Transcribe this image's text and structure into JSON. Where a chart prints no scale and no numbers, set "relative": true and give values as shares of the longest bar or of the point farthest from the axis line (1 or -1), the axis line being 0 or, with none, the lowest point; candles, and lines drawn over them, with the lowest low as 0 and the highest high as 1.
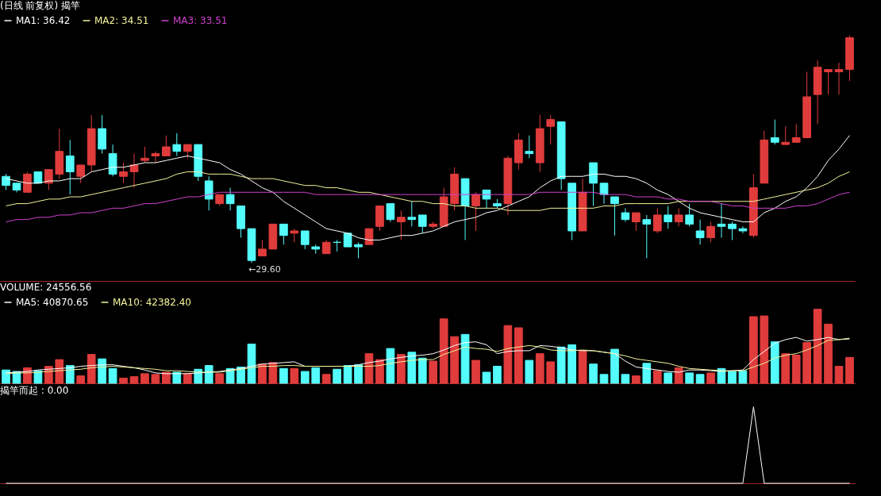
{
  "chart_data": [
    {
      "type": "candlestick",
      "title": "(日线 前复权) 揭竿",
      "relative": true,
      "legend": "top left",
      "categories": [
        null,
        null,
        null,
        null,
        null,
        null,
        null,
        null,
        null,
        null,
        null,
        null,
        null,
        null,
        null,
        null,
        null,
        null,
        null,
        null,
        null,
        null,
        null,
        null,
        null,
        null,
        null,
        null,
        null,
        null,
        null,
        null,
        null,
        null,
        null,
        null,
        null,
        null,
        null,
        null,
        null,
        null,
        null,
        null,
        null,
        null,
        null,
        null,
        null,
        null,
        null,
        null,
        null,
        null,
        null,
        null,
        null,
        null,
        null,
        null,
        null,
        null,
        null,
        null,
        null,
        null,
        null,
        null,
        null,
        null,
        null,
        null,
        null,
        null,
        null,
        null,
        null,
        null,
        null,
        null
      ],
      "ohlc": [
        [
          0.38,
          0.39,
          0.32,
          0.34
        ],
        [
          0.35,
          0.35,
          0.31,
          0.32
        ],
        [
          0.31,
          0.4,
          0.31,
          0.39
        ],
        [
          0.4,
          0.4,
          0.35,
          0.35
        ],
        [
          0.35,
          0.41,
          0.32,
          0.41
        ],
        [
          0.39,
          0.59,
          0.37,
          0.49
        ],
        [
          0.47,
          0.54,
          0.3,
          0.4
        ],
        [
          0.38,
          0.43,
          0.35,
          0.43
        ],
        [
          0.43,
          0.65,
          0.4,
          0.59
        ],
        [
          0.59,
          0.65,
          0.48,
          0.5
        ],
        [
          0.48,
          0.52,
          0.38,
          0.39
        ],
        [
          0.38,
          0.44,
          0.35,
          0.4
        ],
        [
          0.4,
          0.48,
          0.33,
          0.43
        ],
        [
          0.45,
          0.51,
          0.44,
          0.46
        ],
        [
          0.47,
          0.49,
          0.44,
          0.48
        ],
        [
          0.47,
          0.56,
          0.47,
          0.51
        ],
        [
          0.52,
          0.57,
          0.47,
          0.49
        ],
        [
          0.49,
          0.52,
          0.46,
          0.52
        ],
        [
          0.52,
          0.52,
          0.36,
          0.38
        ],
        [
          0.36,
          0.38,
          0.23,
          0.28
        ],
        [
          0.26,
          0.3,
          0.25,
          0.3
        ],
        [
          0.3,
          0.33,
          0.23,
          0.26
        ],
        [
          0.25,
          0.25,
          0.11,
          0.15
        ],
        [
          0.15,
          0.15,
          0,
          0.01
        ],
        [
          0.03,
          0.1,
          0.03,
          0.06
        ],
        [
          0.06,
          0.17,
          0.06,
          0.17
        ],
        [
          0.17,
          0.17,
          0.08,
          0.12
        ],
        [
          0.13,
          0.15,
          0.09,
          0.14
        ],
        [
          0.14,
          0.14,
          0.06,
          0.08
        ],
        [
          0.07,
          0.08,
          0.04,
          0.06
        ],
        [
          0.04,
          0.1,
          0.04,
          0.09
        ],
        [
          0.09,
          0.1,
          0.05,
          0.09
        ],
        [
          0.13,
          0.13,
          0.07,
          0.07
        ],
        [
          0.08,
          0.09,
          0.02,
          0.07
        ],
        [
          0.08,
          0.15,
          0.08,
          0.15
        ],
        [
          0.16,
          0.25,
          0.14,
          0.25
        ],
        [
          0.26,
          0.26,
          0.18,
          0.19
        ],
        [
          0.18,
          0.23,
          0.1,
          0.2
        ],
        [
          0.2,
          0.27,
          0.16,
          0.19
        ],
        [
          0.21,
          0.21,
          0.13,
          0.16
        ],
        [
          0.16,
          0.18,
          0.15,
          0.17
        ],
        [
          0.16,
          0.33,
          0.16,
          0.29
        ],
        [
          0.26,
          0.42,
          0.23,
          0.39
        ],
        [
          0.37,
          0.37,
          0.1,
          0.25
        ],
        [
          0.25,
          0.31,
          0.14,
          0.3
        ],
        [
          0.32,
          0.32,
          0.24,
          0.28
        ],
        [
          0.26,
          0.28,
          0.24,
          0.25
        ],
        [
          0.26,
          0.47,
          0.21,
          0.46
        ],
        [
          0.44,
          0.57,
          0.41,
          0.54
        ],
        [
          0.49,
          0.56,
          0.46,
          0.48
        ],
        [
          0.44,
          0.65,
          0.4,
          0.59
        ],
        [
          0.6,
          0.65,
          0.52,
          0.63
        ],
        [
          0.62,
          0.62,
          0.32,
          0.37
        ],
        [
          0.35,
          0.35,
          0.1,
          0.14
        ],
        [
          0.14,
          0.37,
          0.14,
          0.31
        ],
        [
          0.44,
          0.44,
          0.25,
          0.35
        ],
        [
          0.35,
          0.35,
          0.26,
          0.3
        ],
        [
          0.29,
          0.29,
          0.12,
          0.26
        ],
        [
          0.22,
          0.24,
          0.18,
          0.19
        ],
        [
          0.18,
          0.22,
          0.14,
          0.22
        ],
        [
          0.19,
          0.21,
          0.02,
          0.17
        ],
        [
          0.14,
          0.24,
          0.13,
          0.21
        ],
        [
          0.21,
          0.25,
          0.15,
          0.18
        ],
        [
          0.18,
          0.24,
          0.16,
          0.21
        ],
        [
          0.21,
          0.26,
          0.16,
          0.17
        ],
        [
          0.14,
          0.19,
          0.08,
          0.11
        ],
        [
          0.11,
          0.18,
          0.09,
          0.16
        ],
        [
          0.17,
          0.26,
          0.11,
          0.16
        ],
        [
          0.17,
          0.18,
          0.1,
          0.15
        ],
        [
          0.15,
          0.16,
          0.13,
          0.14
        ],
        [
          0.12,
          0.39,
          0.11,
          0.33
        ],
        [
          0.35,
          0.58,
          0.35,
          0.54
        ],
        [
          0.55,
          0.63,
          0.52,
          0.53
        ],
        [
          0.52,
          0.6,
          0.52,
          0.53
        ],
        [
          0.53,
          0.61,
          0.53,
          0.55
        ],
        [
          0.55,
          0.84,
          0.55,
          0.73
        ],
        [
          0.74,
          0.89,
          0.61,
          0.86
        ],
        [
          0.84,
          0.85,
          0.74,
          0.85
        ],
        [
          0.84,
          0.88,
          0.74,
          0.85
        ],
        [
          0.85,
          1,
          0.8,
          0.99
        ]
      ],
      "colors": [
        "#54fcfc",
        "#54fcfc",
        "#e03c3c",
        "#54fcfc",
        "#e03c3c",
        "#e03c3c",
        "#54fcfc",
        "#e03c3c",
        "#e03c3c",
        "#54fcfc",
        "#54fcfc",
        "#e03c3c",
        "#e03c3c",
        "#e03c3c",
        "#e03c3c",
        "#e03c3c",
        "#54fcfc",
        "#e03c3c",
        "#54fcfc",
        "#54fcfc",
        "#e03c3c",
        "#54fcfc",
        "#54fcfc",
        "#54fcfc",
        "#e03c3c",
        "#e03c3c",
        "#54fcfc",
        "#e03c3c",
        "#54fcfc",
        "#54fcfc",
        "#e03c3c",
        "#54fcfc",
        "#54fcfc",
        "#54fcfc",
        "#e03c3c",
        "#e03c3c",
        "#54fcfc",
        "#e03c3c",
        "#54fcfc",
        "#54fcfc",
        "#e03c3c",
        "#e03c3c",
        "#e03c3c",
        "#54fcfc",
        "#e03c3c",
        "#54fcfc",
        "#54fcfc",
        "#e03c3c",
        "#e03c3c",
        "#54fcfc",
        "#e03c3c",
        "#e03c3c",
        "#54fcfc",
        "#54fcfc",
        "#e03c3c",
        "#54fcfc",
        "#54fcfc",
        "#54fcfc",
        "#54fcfc",
        "#e03c3c",
        "#54fcfc",
        "#e03c3c",
        "#54fcfc",
        "#e03c3c",
        "#54fcfc",
        "#54fcfc",
        "#e03c3c",
        "#54fcfc",
        "#54fcfc",
        "#54fcfc",
        "#e03c3c",
        "#e03c3c",
        "#54fcfc",
        "#e03c3c",
        "#e03c3c",
        "#e03c3c",
        "#e03c3c",
        "#e03c3c",
        "#e03c3c",
        "#e03c3c"
      ],
      "annotations": [
        "←29.60"
      ],
      "series": [
        {
          "name": "MA1: 36.42",
          "type": "line",
          "color": "#ffffff",
          "values": [
            0.37,
            0.36,
            0.35,
            0.35,
            0.36,
            0.36,
            0.37,
            0.37,
            0.4,
            0.41,
            0.42,
            0.42,
            0.43,
            0.44,
            0.44,
            0.45,
            0.46,
            0.47,
            0.46,
            0.45,
            0.44,
            0.41,
            0.39,
            0.36,
            0.33,
            0.31,
            0.27,
            0.24,
            0.21,
            0.18,
            0.15,
            0.14,
            0.13,
            0.11,
            0.1,
            0.1,
            0.11,
            0.12,
            0.12,
            0.13,
            0.14,
            0.16,
            0.18,
            0.19,
            0.2,
            0.22,
            0.23,
            0.25,
            0.27,
            0.29,
            0.33,
            0.36,
            0.38,
            0.38,
            0.38,
            0.39,
            0.39,
            0.38,
            0.38,
            0.37,
            0.35,
            0.32,
            0.3,
            0.27,
            0.24,
            0.22,
            0.21,
            0.2,
            0.19,
            0.18,
            0.18,
            0.22,
            0.24,
            0.27,
            0.29,
            0.33,
            0.38,
            0.45,
            0.5,
            0.56
          ]
        },
        {
          "name": "MA2: 34.51",
          "type": "line",
          "color": "#f2f29a",
          "values": [
            0.25,
            0.26,
            0.26,
            0.27,
            0.28,
            0.28,
            0.29,
            0.29,
            0.3,
            0.31,
            0.32,
            0.33,
            0.34,
            0.35,
            0.36,
            0.37,
            0.39,
            0.4,
            0.4,
            0.39,
            0.39,
            0.39,
            0.38,
            0.37,
            0.37,
            0.37,
            0.36,
            0.35,
            0.34,
            0.34,
            0.33,
            0.33,
            0.32,
            0.31,
            0.31,
            0.3,
            0.29,
            0.28,
            0.27,
            0.27,
            0.26,
            0.26,
            0.25,
            0.25,
            0.24,
            0.24,
            0.24,
            0.23,
            0.23,
            0.23,
            0.23,
            0.24,
            0.24,
            0.24,
            0.24,
            0.24,
            0.25,
            0.25,
            0.26,
            0.26,
            0.26,
            0.26,
            0.26,
            0.27,
            0.27,
            0.27,
            0.27,
            0.27,
            0.27,
            0.27,
            0.27,
            0.28,
            0.29,
            0.3,
            0.31,
            0.32,
            0.33,
            0.35,
            0.38,
            0.4
          ]
        },
        {
          "name": "MA3: 33.51",
          "type": "line",
          "color": "#d040d0",
          "values": [
            0.18,
            0.19,
            0.19,
            0.2,
            0.2,
            0.21,
            0.21,
            0.22,
            0.22,
            0.23,
            0.24,
            0.24,
            0.25,
            0.26,
            0.26,
            0.27,
            0.28,
            0.29,
            0.29,
            0.3,
            0.31,
            0.31,
            0.31,
            0.31,
            0.31,
            0.31,
            0.31,
            0.31,
            0.31,
            0.3,
            0.3,
            0.3,
            0.3,
            0.3,
            0.3,
            0.3,
            0.3,
            0.3,
            0.3,
            0.3,
            0.3,
            0.3,
            0.3,
            0.3,
            0.3,
            0.3,
            0.3,
            0.3,
            0.3,
            0.3,
            0.31,
            0.31,
            0.31,
            0.31,
            0.31,
            0.31,
            0.3,
            0.3,
            0.3,
            0.29,
            0.29,
            0.29,
            0.28,
            0.28,
            0.27,
            0.27,
            0.27,
            0.26,
            0.25,
            0.25,
            0.24,
            0.24,
            0.24,
            0.24,
            0.25,
            0.25,
            0.26,
            0.28,
            0.3,
            0.31
          ]
        }
      ]
    },
    {
      "type": "bar",
      "title": "VOLUME: 24556.56",
      "relative": true,
      "legend": "top left",
      "categories": [
        null,
        null,
        null,
        null,
        null,
        null,
        null,
        null,
        null,
        null,
        null,
        null,
        null,
        null,
        null,
        null,
        null,
        null,
        null,
        null,
        null,
        null,
        null,
        null,
        null,
        null,
        null,
        null,
        null,
        null,
        null,
        null,
        null,
        null,
        null,
        null,
        null,
        null,
        null,
        null,
        null,
        null,
        null,
        null,
        null,
        null,
        null,
        null,
        null,
        null,
        null,
        null,
        null,
        null,
        null,
        null,
        null,
        null,
        null,
        null,
        null,
        null,
        null,
        null,
        null,
        null,
        null,
        null,
        null,
        null,
        null,
        null,
        null,
        null,
        null,
        null,
        null,
        null,
        null,
        null
      ],
      "series": [
        {
          "values": [
            0.18,
            0.16,
            0.21,
            0.17,
            0.23,
            0.32,
            0.24,
            0.1,
            0.39,
            0.33,
            0.2,
            0.07,
            0.09,
            0.13,
            0.12,
            0.15,
            0.15,
            0.13,
            0.19,
            0.24,
            0.13,
            0.2,
            0.22,
            0.53,
            0.26,
            0.28,
            0.2,
            0.2,
            0.16,
            0.21,
            0.12,
            0.19,
            0.24,
            0.25,
            0.4,
            0.32,
            0.47,
            0.39,
            0.42,
            0.34,
            0.3,
            0.87,
            0.63,
            0.66,
            0.31,
            0.15,
            0.23,
            0.78,
            0.75,
            0.31,
            0.4,
            0.29,
            0.49,
            0.52,
            0.44,
            0.26,
            0.12,
            0.46,
            0.12,
            0.1,
            0.27,
            0.17,
            0.14,
            0.21,
            0.14,
            0.12,
            0.14,
            0.2,
            0.16,
            0.17,
            0.9,
            0.91,
            0.56,
            0.4,
            0.38,
            0.55,
            1,
            0.8,
            0.23,
            0.35
          ],
          "colors": [
            "#54fcfc",
            "#54fcfc",
            "#e03c3c",
            "#54fcfc",
            "#e03c3c",
            "#e03c3c",
            "#54fcfc",
            "#e03c3c",
            "#e03c3c",
            "#54fcfc",
            "#54fcfc",
            "#e03c3c",
            "#e03c3c",
            "#e03c3c",
            "#e03c3c",
            "#e03c3c",
            "#54fcfc",
            "#e03c3c",
            "#54fcfc",
            "#54fcfc",
            "#e03c3c",
            "#54fcfc",
            "#54fcfc",
            "#54fcfc",
            "#e03c3c",
            "#e03c3c",
            "#54fcfc",
            "#e03c3c",
            "#54fcfc",
            "#54fcfc",
            "#e03c3c",
            "#54fcfc",
            "#54fcfc",
            "#54fcfc",
            "#e03c3c",
            "#e03c3c",
            "#54fcfc",
            "#e03c3c",
            "#54fcfc",
            "#54fcfc",
            "#e03c3c",
            "#e03c3c",
            "#e03c3c",
            "#54fcfc",
            "#e03c3c",
            "#54fcfc",
            "#54fcfc",
            "#e03c3c",
            "#e03c3c",
            "#54fcfc",
            "#e03c3c",
            "#e03c3c",
            "#54fcfc",
            "#54fcfc",
            "#e03c3c",
            "#54fcfc",
            "#54fcfc",
            "#54fcfc",
            "#54fcfc",
            "#e03c3c",
            "#54fcfc",
            "#e03c3c",
            "#54fcfc",
            "#e03c3c",
            "#54fcfc",
            "#54fcfc",
            "#e03c3c",
            "#54fcfc",
            "#54fcfc",
            "#54fcfc",
            "#e03c3c",
            "#e03c3c",
            "#54fcfc",
            "#e03c3c",
            "#e03c3c",
            "#e03c3c",
            "#e03c3c",
            "#e03c3c",
            "#e03c3c",
            "#e03c3c"
          ]
        },
        {
          "name": "MA5: 40870.65",
          "type": "line",
          "color": "#ffffff",
          "values": [
            0.14,
            0.15,
            0.16,
            0.18,
            0.19,
            0.2,
            0.21,
            0.23,
            0.24,
            0.25,
            0.25,
            0.23,
            0.21,
            0.18,
            0.14,
            0.13,
            0.13,
            0.13,
            0.14,
            0.15,
            0.16,
            0.18,
            0.2,
            0.23,
            0.26,
            0.27,
            0.28,
            0.29,
            0.23,
            0.23,
            0.23,
            0.23,
            0.23,
            0.25,
            0.28,
            0.3,
            0.33,
            0.35,
            0.37,
            0.38,
            0.4,
            0.45,
            0.51,
            0.55,
            0.56,
            0.52,
            0.4,
            0.43,
            0.44,
            0.44,
            0.51,
            0.5,
            0.48,
            0.45,
            0.44,
            0.44,
            0.42,
            0.4,
            0.3,
            0.22,
            0.2,
            0.18,
            0.16,
            0.15,
            0.18,
            0.18,
            0.17,
            0.16,
            0.17,
            0.18,
            0.32,
            0.43,
            0.54,
            0.59,
            0.62,
            0.57,
            0.59,
            0.62,
            0.59,
            0.6
          ]
        },
        {
          "name": "MA10: 42382.40",
          "type": "line",
          "color": "#f2f29a",
          "values": [
            0.13,
            0.14,
            0.14,
            0.15,
            0.16,
            0.17,
            0.18,
            0.19,
            0.21,
            0.22,
            0.23,
            0.22,
            0.21,
            0.2,
            0.19,
            0.17,
            0.17,
            0.16,
            0.15,
            0.15,
            0.15,
            0.17,
            0.19,
            0.21,
            0.23,
            0.23,
            0.24,
            0.24,
            0.23,
            0.23,
            0.23,
            0.23,
            0.23,
            0.23,
            0.23,
            0.24,
            0.27,
            0.29,
            0.31,
            0.32,
            0.32,
            0.39,
            0.44,
            0.49,
            0.47,
            0.46,
            0.43,
            0.47,
            0.49,
            0.51,
            0.49,
            0.45,
            0.44,
            0.44,
            0.45,
            0.44,
            0.42,
            0.4,
            0.37,
            0.33,
            0.31,
            0.29,
            0.27,
            0.23,
            0.2,
            0.19,
            0.18,
            0.17,
            0.17,
            0.17,
            0.22,
            0.27,
            0.34,
            0.38,
            0.4,
            0.45,
            0.51,
            0.58,
            0.59,
            0.61
          ]
        }
      ]
    },
    {
      "type": "line",
      "title": "揭竿而起 : 0.00",
      "relative": true,
      "categories": [
        null,
        null,
        null,
        null,
        null,
        null,
        null,
        null,
        null,
        null,
        null,
        null,
        null,
        null,
        null,
        null,
        null,
        null,
        null,
        null,
        null,
        null,
        null,
        null,
        null,
        null,
        null,
        null,
        null,
        null,
        null,
        null,
        null,
        null,
        null,
        null,
        null,
        null,
        null,
        null,
        null,
        null,
        null,
        null,
        null,
        null,
        null,
        null,
        null,
        null,
        null,
        null,
        null,
        null,
        null,
        null,
        null,
        null,
        null,
        null,
        null,
        null,
        null,
        null,
        null,
        null,
        null,
        null,
        null,
        null,
        null,
        null,
        null,
        null,
        null,
        null,
        null,
        null,
        null,
        null
      ],
      "series": [
        {
          "color": "#ffffff",
          "values": [
            0,
            0,
            0,
            0,
            0,
            0,
            0,
            0,
            0,
            0,
            0,
            0,
            0,
            0,
            0,
            0,
            0,
            0,
            0,
            0,
            0,
            0,
            0,
            0,
            0,
            0,
            0,
            0,
            0,
            0,
            0,
            0,
            0,
            0,
            0,
            0,
            0,
            0,
            0,
            0,
            0,
            0,
            0,
            0,
            0,
            0,
            0,
            0,
            0,
            0,
            0,
            0,
            0,
            0,
            0,
            0,
            0,
            0,
            0,
            0,
            0,
            0,
            0,
            0,
            0,
            0,
            0,
            0,
            0,
            0,
            1,
            0,
            0,
            0,
            0,
            0,
            0,
            0,
            0,
            0
          ]
        }
      ]
    }
  ]
}
